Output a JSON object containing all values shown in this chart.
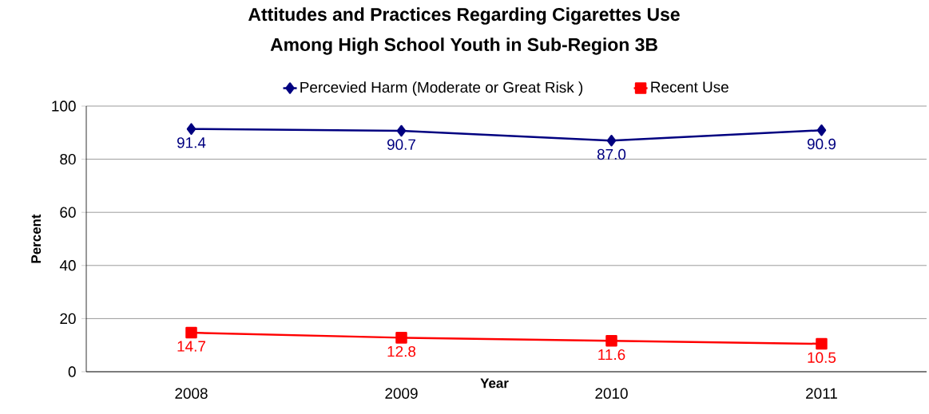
{
  "chart_data": {
    "type": "line",
    "title": "Attitudes and Practices Regarding Cigarettes Use\nAmong High School Youth in Sub-Region 3B",
    "xlabel": "Year",
    "ylabel": "Percent",
    "categories": [
      "2008",
      "2009",
      "2010",
      "2011"
    ],
    "series": [
      {
        "name": "Percevied Harm (Moderate or Great Risk )",
        "color": "#000080",
        "marker": "diamond",
        "values": [
          91.4,
          90.7,
          87.0,
          90.9
        ],
        "value_labels": [
          "91.4",
          "90.7",
          "87.0",
          "90.9"
        ]
      },
      {
        "name": "Recent Use",
        "color": "#ff0000",
        "marker": "square",
        "values": [
          14.7,
          12.8,
          11.6,
          10.5
        ],
        "value_labels": [
          "14.7",
          "12.8",
          "11.6",
          "10.5"
        ]
      }
    ],
    "ylim": [
      0,
      100
    ],
    "yticks": [
      0,
      20,
      40,
      60,
      80,
      100
    ],
    "grid": "y",
    "legend": "top",
    "line_style": "solid"
  }
}
